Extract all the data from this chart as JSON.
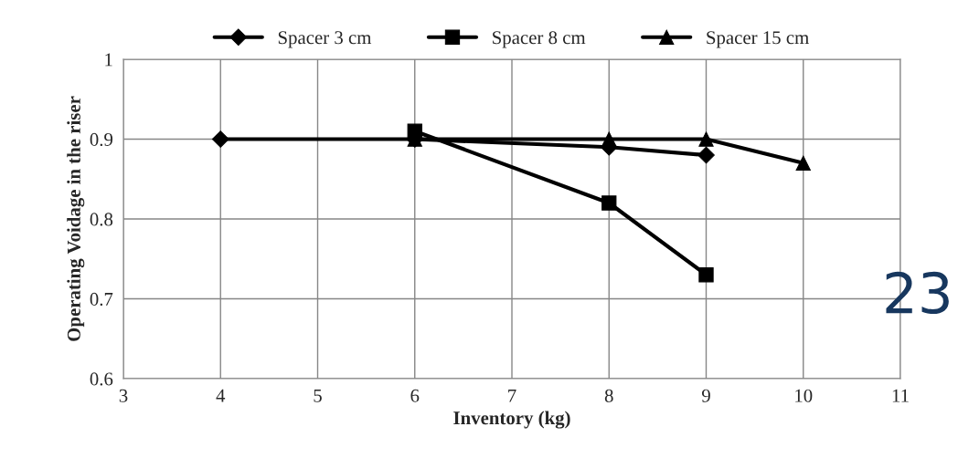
{
  "chart_data": {
    "type": "line",
    "xlabel": "Inventory (kg)",
    "ylabel": "Operating Voidage in the riser",
    "series": [
      {
        "name": "Spacer 3 cm",
        "color": "#000000",
        "marker": "diamond",
        "x": [
          4,
          6,
          8,
          9
        ],
        "values": [
          0.9,
          0.9,
          0.89,
          0.88
        ]
      },
      {
        "name": "Spacer 8 cm",
        "color": "#000000",
        "marker": "square",
        "x": [
          6,
          8,
          9
        ],
        "values": [
          0.91,
          0.82,
          0.73
        ]
      },
      {
        "name": "Spacer 15 cm",
        "color": "#000000",
        "marker": "triangle",
        "x": [
          6,
          8,
          9,
          10
        ],
        "values": [
          0.9,
          0.9,
          0.9,
          0.87
        ]
      }
    ],
    "xlim": [
      3,
      11
    ],
    "xticks": [
      3,
      4,
      5,
      6,
      7,
      8,
      9,
      10,
      11
    ],
    "ylim": [
      0.6,
      1
    ],
    "yticks": [
      {
        "value": 0.6,
        "label": "0.6"
      },
      {
        "value": 0.7,
        "label": "0.7"
      },
      {
        "value": 0.8,
        "label": "0.8"
      },
      {
        "value": 0.9,
        "label": "0.9"
      },
      {
        "value": 1,
        "label": "1"
      }
    ],
    "grid": true,
    "legend": "top",
    "line_style": "solid",
    "annotations": [
      "23"
    ]
  }
}
